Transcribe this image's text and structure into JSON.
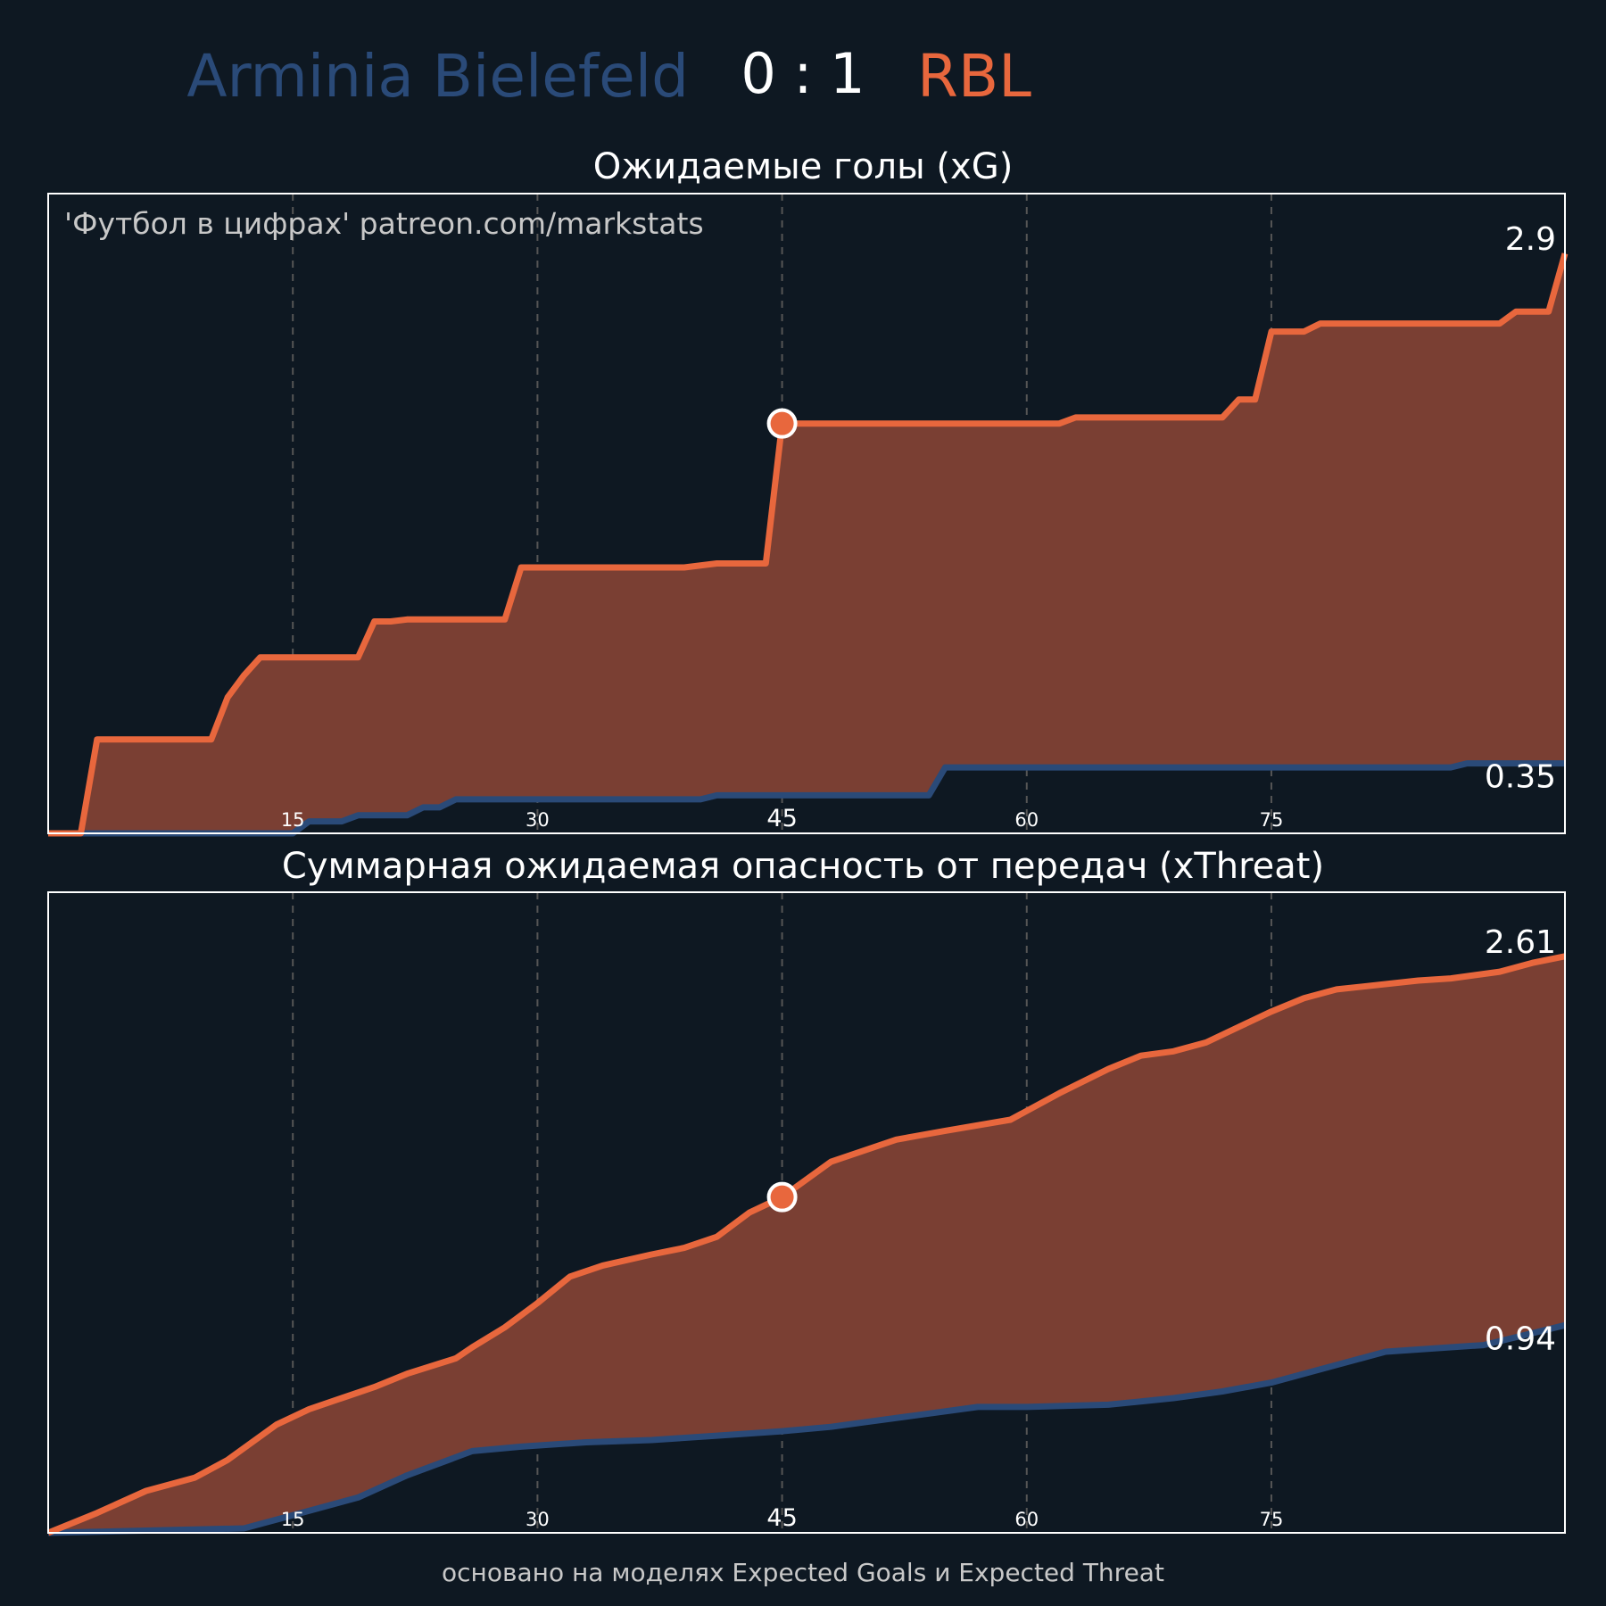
{
  "header": {
    "home_team": "Arminia Bielefeld",
    "score": "0 : 1",
    "away_team": "RBL"
  },
  "colors": {
    "background": "#0e1822",
    "home": "#2a4a78",
    "away": "#e8673d",
    "fill": "#7a3f33",
    "text": "#ffffff",
    "watermark": "#c8c8c8",
    "grid": "#555555"
  },
  "watermark": "'Футбол в цифрах' patreon.com/markstats",
  "footer": "основано на моделях Expected Goals и Expected Threat",
  "chart_data": [
    {
      "type": "area",
      "title": "Ожидаемые голы (xG)",
      "xlim": [
        0,
        93
      ],
      "ylim": [
        0,
        3.2
      ],
      "x_ticks": [
        15,
        30,
        45,
        60,
        75
      ],
      "grid": "vertical dashed",
      "final_labels": {
        "away": "2.9",
        "home": "0.35"
      },
      "halftime_marker": {
        "x": 45,
        "y": 2.05
      },
      "series": [
        {
          "team": "RBL",
          "points": [
            [
              0,
              0
            ],
            [
              2,
              0
            ],
            [
              3,
              0.47
            ],
            [
              6,
              0.47
            ],
            [
              10,
              0.47
            ],
            [
              11,
              0.68
            ],
            [
              12,
              0.79
            ],
            [
              13,
              0.88
            ],
            [
              19,
              0.88
            ],
            [
              20,
              1.06
            ],
            [
              21,
              1.06
            ],
            [
              22,
              1.07
            ],
            [
              28,
              1.07
            ],
            [
              29,
              1.33
            ],
            [
              39,
              1.33
            ],
            [
              41,
              1.35
            ],
            [
              42,
              1.35
            ],
            [
              44,
              1.35
            ],
            [
              45,
              2.05
            ],
            [
              62,
              2.05
            ],
            [
              63,
              2.08
            ],
            [
              72,
              2.08
            ],
            [
              73,
              2.17
            ],
            [
              74,
              2.17
            ],
            [
              75,
              2.51
            ],
            [
              77,
              2.51
            ],
            [
              78,
              2.55
            ],
            [
              89,
              2.55
            ],
            [
              90,
              2.61
            ],
            [
              92,
              2.61
            ],
            [
              93,
              2.9
            ]
          ]
        },
        {
          "team": "Arminia Bielefeld",
          "points": [
            [
              0,
              0
            ],
            [
              15,
              0
            ],
            [
              16,
              0.06
            ],
            [
              18,
              0.06
            ],
            [
              19,
              0.09
            ],
            [
              22,
              0.09
            ],
            [
              23,
              0.13
            ],
            [
              24,
              0.13
            ],
            [
              25,
              0.17
            ],
            [
              40,
              0.17
            ],
            [
              41,
              0.19
            ],
            [
              54,
              0.19
            ],
            [
              55,
              0.33
            ],
            [
              86,
              0.33
            ],
            [
              87,
              0.35
            ],
            [
              93,
              0.35
            ]
          ]
        }
      ]
    },
    {
      "type": "area",
      "title": "Суммарная ожидаемая опасность от передач (xThreat)",
      "xlim": [
        0,
        93
      ],
      "ylim": [
        0,
        2.9
      ],
      "x_ticks": [
        15,
        30,
        45,
        60,
        75
      ],
      "grid": "vertical dashed",
      "final_labels": {
        "away": "2.61",
        "home": "0.94"
      },
      "halftime_marker": {
        "x": 45,
        "y": 1.52
      },
      "series": [
        {
          "team": "RBL",
          "points": [
            [
              0,
              0
            ],
            [
              3,
              0.09
            ],
            [
              6,
              0.19
            ],
            [
              9,
              0.25
            ],
            [
              11,
              0.33
            ],
            [
              14,
              0.49
            ],
            [
              16,
              0.56
            ],
            [
              18,
              0.61
            ],
            [
              20,
              0.66
            ],
            [
              22,
              0.72
            ],
            [
              25,
              0.79
            ],
            [
              26,
              0.84
            ],
            [
              28,
              0.93
            ],
            [
              30,
              1.04
            ],
            [
              32,
              1.16
            ],
            [
              34,
              1.21
            ],
            [
              37,
              1.26
            ],
            [
              39,
              1.29
            ],
            [
              41,
              1.34
            ],
            [
              43,
              1.45
            ],
            [
              45,
              1.52
            ],
            [
              48,
              1.68
            ],
            [
              52,
              1.78
            ],
            [
              55,
              1.82
            ],
            [
              59,
              1.87
            ],
            [
              62,
              1.99
            ],
            [
              65,
              2.1
            ],
            [
              67,
              2.16
            ],
            [
              69,
              2.18
            ],
            [
              71,
              2.22
            ],
            [
              73,
              2.29
            ],
            [
              75,
              2.36
            ],
            [
              77,
              2.42
            ],
            [
              79,
              2.46
            ],
            [
              84,
              2.5
            ],
            [
              86,
              2.51
            ],
            [
              89,
              2.54
            ],
            [
              91,
              2.58
            ],
            [
              93,
              2.61
            ]
          ]
        },
        {
          "team": "Arminia Bielefeld",
          "points": [
            [
              0,
              0
            ],
            [
              6,
              0.01
            ],
            [
              12,
              0.02
            ],
            [
              15,
              0.08
            ],
            [
              19,
              0.16
            ],
            [
              22,
              0.26
            ],
            [
              26,
              0.37
            ],
            [
              29,
              0.39
            ],
            [
              33,
              0.41
            ],
            [
              37,
              0.42
            ],
            [
              41,
              0.44
            ],
            [
              45,
              0.46
            ],
            [
              48,
              0.48
            ],
            [
              50,
              0.5
            ],
            [
              53,
              0.53
            ],
            [
              57,
              0.57
            ],
            [
              60,
              0.57
            ],
            [
              65,
              0.58
            ],
            [
              69,
              0.61
            ],
            [
              72,
              0.64
            ],
            [
              75,
              0.68
            ],
            [
              78,
              0.74
            ],
            [
              82,
              0.82
            ],
            [
              86,
              0.84
            ],
            [
              88,
              0.85
            ],
            [
              93,
              0.94
            ]
          ]
        }
      ]
    }
  ]
}
